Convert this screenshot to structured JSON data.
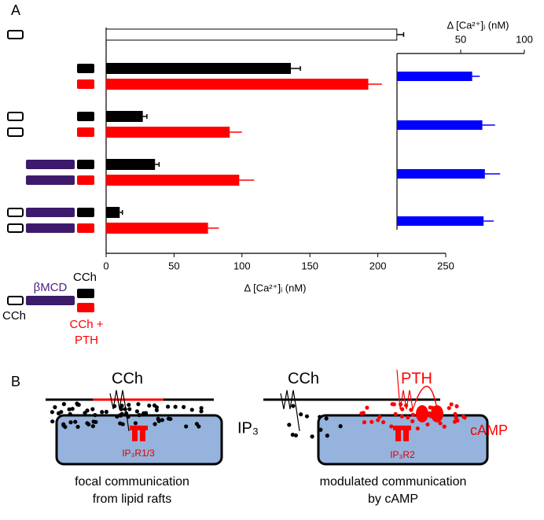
{
  "panel_labels": [
    "A",
    "B"
  ],
  "chart_data": [
    {
      "type": "bar",
      "orientation": "horizontal",
      "categories": [
        null,
        null,
        null,
        null,
        null,
        null,
        null,
        null,
        null
      ],
      "values": [
        214,
        136,
        193,
        27,
        91,
        36,
        98,
        10,
        75
      ],
      "errors": [
        5,
        7,
        10,
        3,
        9,
        3,
        11,
        2,
        8
      ],
      "colors": [
        "#ffffff",
        "#000000",
        "#ff0000",
        "#000000",
        "#ff0000",
        "#000000",
        "#ff0000",
        "#000000",
        "#ff0000"
      ],
      "x_label": "Δ [Ca²⁺]ᵢ (nM)",
      "xlim": [
        0,
        250
      ],
      "xticks": [
        0,
        50,
        100,
        150,
        200,
        250
      ]
    },
    {
      "type": "bar",
      "orientation": "horizontal",
      "categories": [
        null,
        null,
        null,
        null
      ],
      "values": [
        59,
        67,
        69,
        68
      ],
      "errors": [
        6,
        10,
        12,
        8
      ],
      "color": "#0000ff",
      "x_label": "Δ [Ca²⁺]ᵢ (nM)",
      "xlim": [
        0,
        100
      ],
      "xticks": [
        50,
        100
      ]
    }
  ],
  "key": {
    "bmcd": "βMCD",
    "cch_top": "CCh",
    "cch_left": "CCh",
    "cch_pth_1": "CCh +",
    "cch_pth_2": "PTH"
  },
  "diagram": {
    "left": {
      "agonist": "CCh",
      "receptor": "IP₃R1/3",
      "caption_1": "focal communication",
      "caption_2": "from lipid rafts"
    },
    "messenger": "IP₃",
    "right": {
      "agonist_1": "CCh",
      "agonist_2": "PTH",
      "second_messenger": "cAMP",
      "receptor": "IP₃R2",
      "caption_1": "modulated communication",
      "caption_2": "by cAMP"
    }
  }
}
